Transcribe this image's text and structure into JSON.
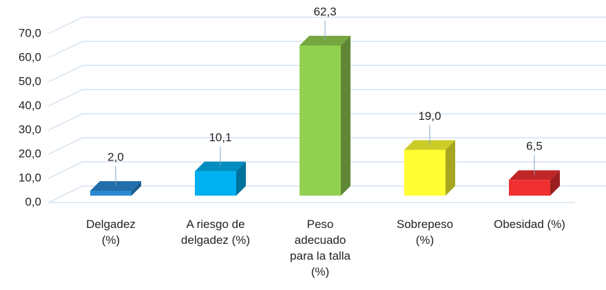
{
  "chart_data": {
    "type": "bar3d",
    "categories": [
      "Delgadez\n(%)",
      "A riesgo de\ndelgadez (%)",
      "Peso\nadecuado\npara la talla\n(%)",
      "Sobrepeso\n(%)",
      "Obesidad (%)"
    ],
    "values": [
      2.0,
      10.1,
      62.3,
      19.0,
      6.5
    ],
    "value_labels": [
      "2,0",
      "10,1",
      "62,3",
      "19,0",
      "6,5"
    ],
    "colors": [
      "#2a8ad4",
      "#00b0f0",
      "#92d050",
      "#ffff33",
      "#f03030"
    ],
    "ylim": [
      0,
      70
    ],
    "yticks": [
      {
        "value": 0,
        "label": "0,0"
      },
      {
        "value": 10,
        "label": "10,0"
      },
      {
        "value": 20,
        "label": "20,0"
      },
      {
        "value": 30,
        "label": "30,0"
      },
      {
        "value": 40,
        "label": "40,0"
      },
      {
        "value": 50,
        "label": "50,0"
      },
      {
        "value": 60,
        "label": "60,0"
      },
      {
        "value": 70,
        "label": "70,0"
      }
    ],
    "grid": true
  }
}
